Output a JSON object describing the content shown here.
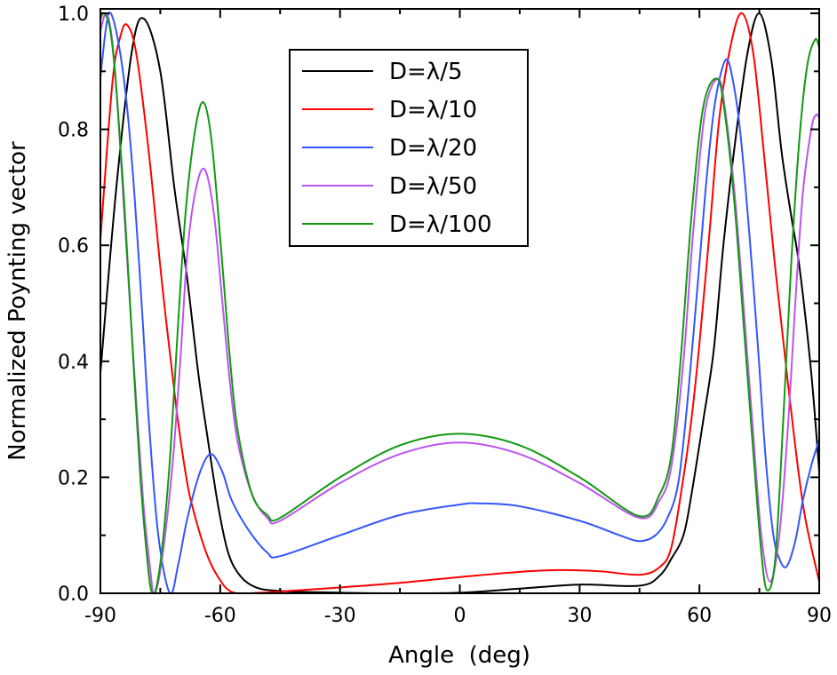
{
  "chart_data": {
    "type": "line",
    "title": "",
    "xlabel": "Angle  (deg)",
    "ylabel": "Normalized Poynting vector",
    "xlim": [
      -90,
      90
    ],
    "ylim": [
      0,
      1
    ],
    "xticks": [
      "-90",
      "-60",
      "-30",
      "0",
      "30",
      "60",
      "90"
    ],
    "xtick_values": [
      -90,
      -60,
      -30,
      0,
      30,
      60,
      90
    ],
    "yticks": [
      "0.0",
      "0.2",
      "0.4",
      "0.6",
      "0.8",
      "1.0"
    ],
    "ytick_values": [
      0,
      0.2,
      0.4,
      0.6,
      0.8,
      1.0
    ],
    "grid": false,
    "legend_position": "top-center",
    "series": [
      {
        "name": "D=λ/5",
        "color": "#000000",
        "points": [
          [
            -90,
            0.38
          ],
          [
            -86,
            0.7
          ],
          [
            -82,
            0.94
          ],
          [
            -79,
            0.99
          ],
          [
            -75,
            0.9
          ],
          [
            -71.5,
            0.7
          ],
          [
            -68.4,
            0.55
          ],
          [
            -65.5,
            0.38
          ],
          [
            -63.2,
            0.27
          ],
          [
            -60.5,
            0.15
          ],
          [
            -58,
            0.07
          ],
          [
            -55,
            0.03
          ],
          [
            -51,
            0.01
          ],
          [
            -45,
            0.004
          ],
          [
            -30,
            0.001
          ],
          [
            -15,
            0
          ],
          [
            0,
            0.001
          ],
          [
            15,
            0.008
          ],
          [
            30,
            0.015
          ],
          [
            45,
            0.013
          ],
          [
            50,
            0.03
          ],
          [
            53,
            0.06
          ],
          [
            56,
            0.1
          ],
          [
            58,
            0.17
          ],
          [
            61,
            0.3
          ],
          [
            63.6,
            0.42
          ],
          [
            66,
            0.6
          ],
          [
            68.8,
            0.77
          ],
          [
            72,
            0.93
          ],
          [
            75,
            1.0
          ],
          [
            78,
            0.92
          ],
          [
            80.6,
            0.76
          ],
          [
            83,
            0.65
          ],
          [
            85.1,
            0.56
          ],
          [
            88,
            0.38
          ],
          [
            90,
            0.21
          ]
        ]
      },
      {
        "name": "D=λ/10",
        "color": "#ff0000",
        "points": [
          [
            -90,
            0.61
          ],
          [
            -87,
            0.88
          ],
          [
            -85,
            0.96
          ],
          [
            -83.3,
            0.98
          ],
          [
            -81,
            0.93
          ],
          [
            -77.8,
            0.755
          ],
          [
            -74.5,
            0.53
          ],
          [
            -71,
            0.32
          ],
          [
            -68.5,
            0.2
          ],
          [
            -66.6,
            0.14
          ],
          [
            -63.5,
            0.07
          ],
          [
            -60.7,
            0.03
          ],
          [
            -57,
            0.002
          ],
          [
            -50,
            0.001
          ],
          [
            -45,
            0.003
          ],
          [
            -30,
            0.01
          ],
          [
            -15,
            0.018
          ],
          [
            0,
            0.028
          ],
          [
            15,
            0.037
          ],
          [
            25,
            0.04
          ],
          [
            35,
            0.038
          ],
          [
            45,
            0.032
          ],
          [
            50,
            0.045
          ],
          [
            53,
            0.08
          ],
          [
            56,
            0.2
          ],
          [
            58,
            0.3
          ],
          [
            60,
            0.43
          ],
          [
            62.5,
            0.62
          ],
          [
            65,
            0.82
          ],
          [
            68,
            0.95
          ],
          [
            70.7,
            1.0
          ],
          [
            73.5,
            0.93
          ],
          [
            76.2,
            0.755
          ],
          [
            79,
            0.56
          ],
          [
            82.2,
            0.36
          ],
          [
            86,
            0.15
          ],
          [
            90,
            0.02
          ]
        ]
      },
      {
        "name": "D=λ/20",
        "color": "#3355ff",
        "points": [
          [
            -90,
            0.89
          ],
          [
            -88.5,
            0.98
          ],
          [
            -87.4,
            1.0
          ],
          [
            -85.5,
            0.95
          ],
          [
            -83.5,
            0.85
          ],
          [
            -81.5,
            0.69
          ],
          [
            -79.5,
            0.48
          ],
          [
            -77.8,
            0.29
          ],
          [
            -75.5,
            0.1
          ],
          [
            -72.6,
            0.0
          ],
          [
            -70.5,
            0.05
          ],
          [
            -68.2,
            0.13
          ],
          [
            -65,
            0.21
          ],
          [
            -62.3,
            0.24
          ],
          [
            -59.5,
            0.21
          ],
          [
            -57.1,
            0.16
          ],
          [
            -53,
            0.11
          ],
          [
            -48.2,
            0.07
          ],
          [
            -45,
            0.064
          ],
          [
            -30,
            0.1
          ],
          [
            -15,
            0.135
          ],
          [
            0,
            0.153
          ],
          [
            5,
            0.155
          ],
          [
            15,
            0.15
          ],
          [
            30,
            0.125
          ],
          [
            40,
            0.1
          ],
          [
            45,
            0.09
          ],
          [
            49,
            0.1
          ],
          [
            52,
            0.13
          ],
          [
            54.7,
            0.19
          ],
          [
            57,
            0.33
          ],
          [
            59.9,
            0.56
          ],
          [
            62,
            0.73
          ],
          [
            64,
            0.85
          ],
          [
            66.6,
            0.92
          ],
          [
            68.5,
            0.88
          ],
          [
            70.3,
            0.79
          ],
          [
            72.5,
            0.62
          ],
          [
            74.7,
            0.42
          ],
          [
            76.5,
            0.24
          ],
          [
            78.4,
            0.106
          ],
          [
            80,
            0.06
          ],
          [
            81.8,
            0.046
          ],
          [
            84,
            0.09
          ],
          [
            85.9,
            0.16
          ],
          [
            88,
            0.22
          ],
          [
            90,
            0.265
          ]
        ]
      },
      {
        "name": "D=λ/50",
        "color": "#bb55ee",
        "points": [
          [
            -90,
            0.97
          ],
          [
            -88.5,
            1.0
          ],
          [
            -87,
            0.95
          ],
          [
            -85.5,
            0.82
          ],
          [
            -83.7,
            0.62
          ],
          [
            -81.5,
            0.38
          ],
          [
            -79.3,
            0.16
          ],
          [
            -77.5,
            0.04
          ],
          [
            -76.7,
            0.0
          ],
          [
            -75.5,
            0.02
          ],
          [
            -73.8,
            0.1
          ],
          [
            -71.9,
            0.225
          ],
          [
            -70,
            0.4
          ],
          [
            -68.2,
            0.59
          ],
          [
            -66,
            0.7
          ],
          [
            -63.8,
            0.73
          ],
          [
            -61.5,
            0.65
          ],
          [
            -59.3,
            0.49
          ],
          [
            -57.5,
            0.36
          ],
          [
            -55.6,
            0.26
          ],
          [
            -52,
            0.17
          ],
          [
            -48.2,
            0.13
          ],
          [
            -45,
            0.125
          ],
          [
            -30,
            0.19
          ],
          [
            -15,
            0.24
          ],
          [
            0,
            0.26
          ],
          [
            15,
            0.24
          ],
          [
            30,
            0.19
          ],
          [
            45,
            0.13
          ],
          [
            50,
            0.16
          ],
          [
            53,
            0.22
          ],
          [
            56,
            0.4
          ],
          [
            58.4,
            0.62
          ],
          [
            61.4,
            0.83
          ],
          [
            64.7,
            0.887
          ],
          [
            66.5,
            0.83
          ],
          [
            68.8,
            0.69
          ],
          [
            71,
            0.5
          ],
          [
            73.3,
            0.29
          ],
          [
            75.5,
            0.1
          ],
          [
            77.7,
            0.02
          ],
          [
            80,
            0.1
          ],
          [
            82.2,
            0.29
          ],
          [
            84,
            0.5
          ],
          [
            85.9,
            0.69
          ],
          [
            88,
            0.8
          ],
          [
            89.2,
            0.825
          ],
          [
            90,
            0.82
          ]
        ]
      },
      {
        "name": "D=λ/100",
        "color": "#119911",
        "points": [
          [
            -90,
            0.99
          ],
          [
            -89,
            1.0
          ],
          [
            -87.5,
            0.97
          ],
          [
            -86,
            0.87
          ],
          [
            -84,
            0.67
          ],
          [
            -82,
            0.43
          ],
          [
            -80,
            0.2
          ],
          [
            -78,
            0.04
          ],
          [
            -77,
            0.0
          ],
          [
            -76,
            0.01
          ],
          [
            -74.5,
            0.08
          ],
          [
            -72.5,
            0.24
          ],
          [
            -70.5,
            0.47
          ],
          [
            -68.5,
            0.67
          ],
          [
            -66,
            0.81
          ],
          [
            -64,
            0.845
          ],
          [
            -62,
            0.77
          ],
          [
            -59.5,
            0.57
          ],
          [
            -57.5,
            0.4
          ],
          [
            -55.6,
            0.28
          ],
          [
            -52,
            0.17
          ],
          [
            -48.2,
            0.135
          ],
          [
            -45,
            0.13
          ],
          [
            -30,
            0.2
          ],
          [
            -15,
            0.255
          ],
          [
            0,
            0.275
          ],
          [
            15,
            0.255
          ],
          [
            30,
            0.2
          ],
          [
            45,
            0.133
          ],
          [
            50,
            0.17
          ],
          [
            53,
            0.24
          ],
          [
            55.5,
            0.42
          ],
          [
            58,
            0.65
          ],
          [
            61,
            0.84
          ],
          [
            64.5,
            0.887
          ],
          [
            66.5,
            0.82
          ],
          [
            68.8,
            0.67
          ],
          [
            71,
            0.47
          ],
          [
            73.3,
            0.26
          ],
          [
            75.5,
            0.07
          ],
          [
            77,
            0.005
          ],
          [
            79,
            0.06
          ],
          [
            81,
            0.3
          ],
          [
            83,
            0.57
          ],
          [
            85,
            0.78
          ],
          [
            87,
            0.91
          ],
          [
            89,
            0.955
          ],
          [
            90,
            0.94
          ]
        ]
      }
    ]
  }
}
